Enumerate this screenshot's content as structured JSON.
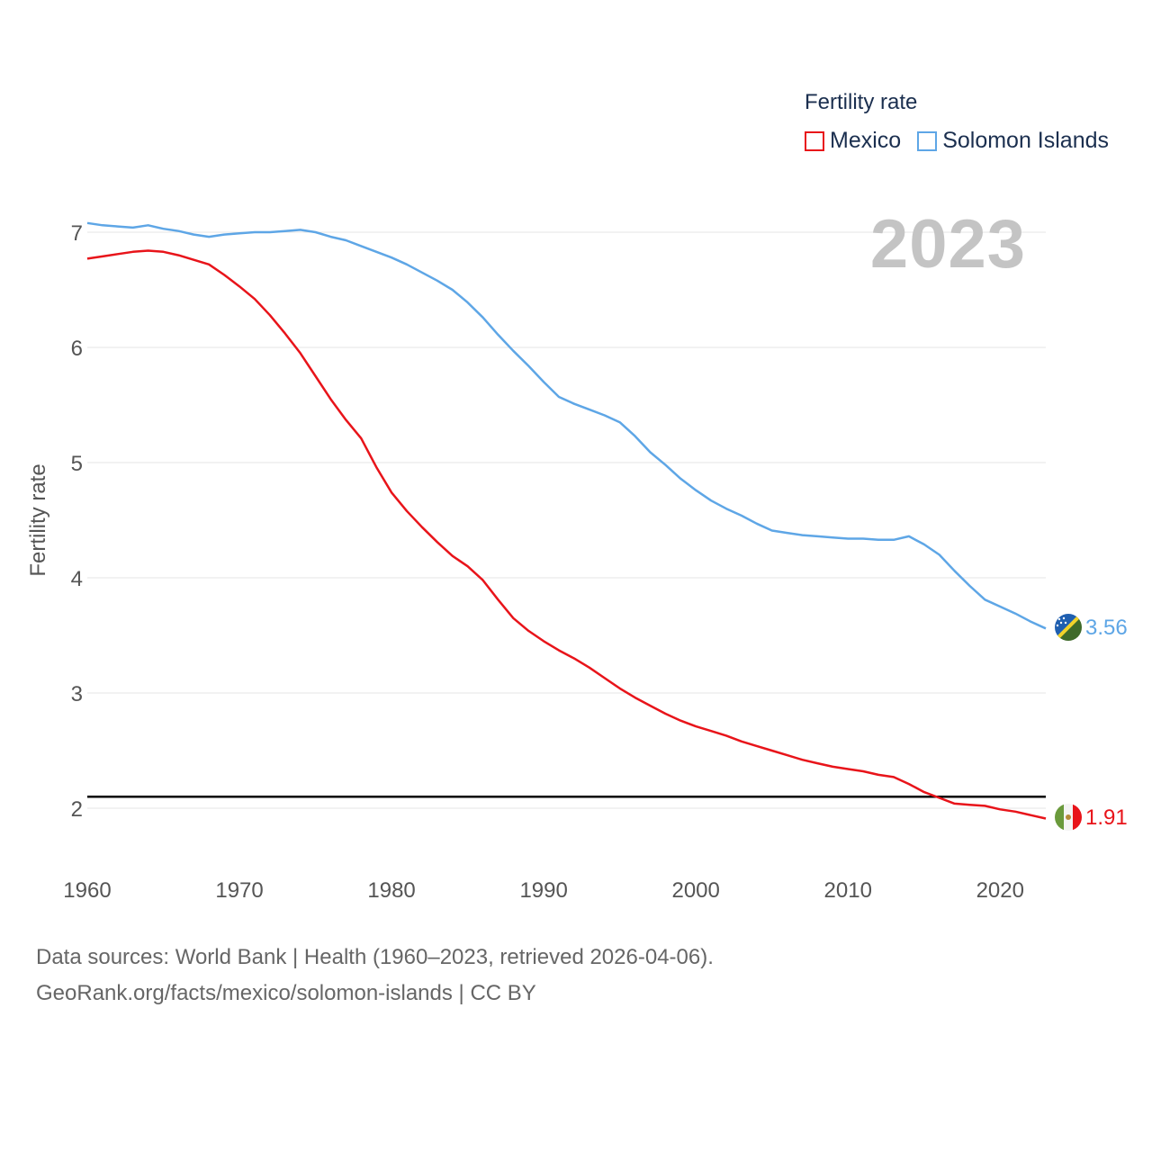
{
  "legend": {
    "title": "Fertility rate",
    "items": [
      {
        "label": "Mexico",
        "color": "#e8141a"
      },
      {
        "label": "Solomon Islands",
        "color": "#5ea6e6"
      }
    ]
  },
  "year_label": "2023",
  "source": {
    "line1": "Data sources: World Bank | Health (1960–2023, retrieved 2026-04-06).",
    "line2": "GeoRank.org/facts/mexico/solomon-islands | CC BY"
  },
  "chart_data": {
    "type": "line",
    "title": "",
    "xlabel": "",
    "ylabel": "Fertility rate",
    "xlim": [
      1960,
      2023
    ],
    "ylim": [
      1.55,
      7.3
    ],
    "x_ticks": [
      1960,
      1970,
      1980,
      1990,
      2000,
      2010,
      2020
    ],
    "y_ticks": [
      2,
      3,
      4,
      5,
      6,
      7
    ],
    "reference_line": {
      "y": 2.1
    },
    "x": [
      1960,
      1961,
      1962,
      1963,
      1964,
      1965,
      1966,
      1967,
      1968,
      1969,
      1970,
      1971,
      1972,
      1973,
      1974,
      1975,
      1976,
      1977,
      1978,
      1979,
      1980,
      1981,
      1982,
      1983,
      1984,
      1985,
      1986,
      1987,
      1988,
      1989,
      1990,
      1991,
      1992,
      1993,
      1994,
      1995,
      1996,
      1997,
      1998,
      1999,
      2000,
      2001,
      2002,
      2003,
      2004,
      2005,
      2006,
      2007,
      2008,
      2009,
      2010,
      2011,
      2012,
      2013,
      2014,
      2015,
      2016,
      2017,
      2018,
      2019,
      2020,
      2021,
      2022,
      2023
    ],
    "series": [
      {
        "name": "Mexico",
        "color": "#e8141a",
        "end_label": "1.91",
        "values": [
          6.77,
          6.79,
          6.81,
          6.83,
          6.84,
          6.83,
          6.8,
          6.76,
          6.72,
          6.63,
          6.53,
          6.42,
          6.28,
          6.12,
          5.95,
          5.75,
          5.55,
          5.37,
          5.21,
          4.96,
          4.74,
          4.58,
          4.44,
          4.31,
          4.19,
          4.1,
          3.98,
          3.81,
          3.65,
          3.54,
          3.45,
          3.37,
          3.3,
          3.22,
          3.13,
          3.04,
          2.96,
          2.89,
          2.82,
          2.76,
          2.71,
          2.67,
          2.63,
          2.58,
          2.54,
          2.5,
          2.46,
          2.42,
          2.39,
          2.36,
          2.34,
          2.32,
          2.29,
          2.27,
          2.21,
          2.14,
          2.09,
          2.04,
          2.03,
          2.02,
          1.99,
          1.97,
          1.94,
          1.91
        ]
      },
      {
        "name": "Solomon Islands",
        "color": "#5ea6e6",
        "end_label": "3.56",
        "values": [
          7.08,
          7.06,
          7.05,
          7.04,
          7.06,
          7.03,
          7.01,
          6.98,
          6.96,
          6.98,
          6.99,
          7.0,
          7.0,
          7.01,
          7.02,
          7.0,
          6.96,
          6.93,
          6.88,
          6.83,
          6.78,
          6.72,
          6.65,
          6.58,
          6.5,
          6.39,
          6.26,
          6.11,
          5.97,
          5.84,
          5.7,
          5.57,
          5.51,
          5.46,
          5.41,
          5.35,
          5.23,
          5.09,
          4.98,
          4.86,
          4.76,
          4.67,
          4.6,
          4.54,
          4.47,
          4.41,
          4.39,
          4.37,
          4.36,
          4.35,
          4.34,
          4.34,
          4.33,
          4.33,
          4.36,
          4.29,
          4.2,
          4.06,
          3.93,
          3.81,
          3.75,
          3.69,
          3.62,
          3.56
        ]
      }
    ]
  }
}
